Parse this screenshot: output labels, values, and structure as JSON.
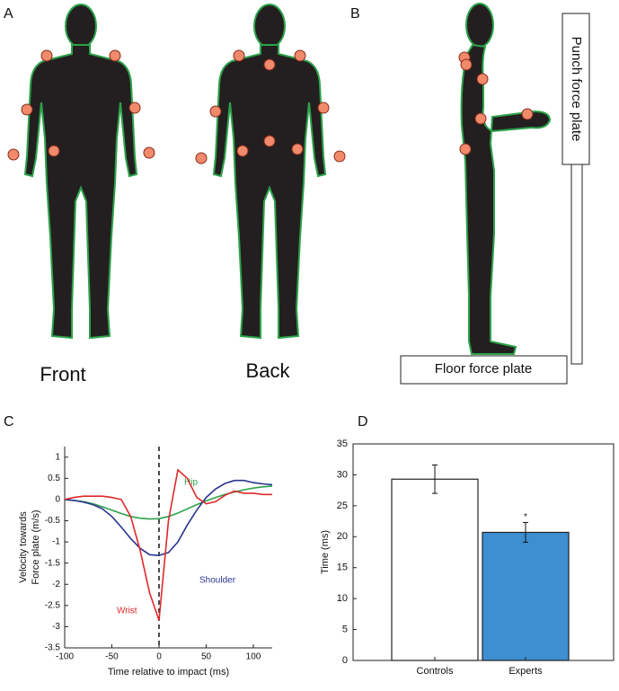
{
  "figure": {
    "panel_labels": [
      "A",
      "B",
      "C",
      "D"
    ],
    "body_views": [
      "Front",
      "Back"
    ],
    "plates": [
      "Punch force plate",
      "Floor force plate"
    ]
  },
  "chart_data": [
    {
      "type": "line",
      "xlabel": "Time relative to impact (ms)",
      "ylabel_lines": [
        "Velocity towards",
        "Force plate (m/s)"
      ],
      "x": [
        -100,
        -90,
        -80,
        -70,
        -60,
        -50,
        -40,
        -30,
        -20,
        -10,
        0,
        10,
        20,
        30,
        40,
        50,
        60,
        70,
        80,
        90,
        100,
        110,
        120
      ],
      "series": [
        {
          "name": "Hip",
          "color": "#2ca24a",
          "values": [
            0,
            -0.02,
            -0.05,
            -0.1,
            -0.17,
            -0.25,
            -0.33,
            -0.4,
            -0.44,
            -0.46,
            -0.45,
            -0.4,
            -0.32,
            -0.22,
            -0.12,
            -0.03,
            0.05,
            0.12,
            0.18,
            0.23,
            0.27,
            0.3,
            0.32
          ]
        },
        {
          "name": "Shoulder",
          "color": "#2a3590",
          "values": [
            0,
            -0.02,
            -0.06,
            -0.12,
            -0.22,
            -0.4,
            -0.65,
            -0.92,
            -1.15,
            -1.3,
            -1.32,
            -1.25,
            -1.0,
            -0.6,
            -0.25,
            0.05,
            0.25,
            0.38,
            0.45,
            0.45,
            0.4,
            0.37,
            0.35
          ]
        },
        {
          "name": "Wrist",
          "color": "#e0282a",
          "values": [
            0,
            0.05,
            0.08,
            0.08,
            0.08,
            0.05,
            0,
            -0.4,
            -1.2,
            -2.2,
            -2.85,
            -0.5,
            0.7,
            0.5,
            0.05,
            -0.1,
            -0.05,
            0.1,
            0.2,
            0.15,
            0.15,
            0.12,
            0.12
          ]
        }
      ],
      "xlim": [
        -100,
        120
      ],
      "xticks": [
        -100,
        -50,
        0,
        50,
        100
      ],
      "ylim": [
        -3.5,
        1.25
      ],
      "yticks": [
        1,
        0.5,
        0,
        -0.5,
        -1,
        -1.5,
        -2,
        -2.5,
        -3,
        -3.5
      ],
      "vline": 0
    },
    {
      "type": "bar",
      "ylabel": "Time (ms)",
      "categories": [
        "Controls",
        "Experts"
      ],
      "values": [
        29.3,
        20.7
      ],
      "errors": [
        2.3,
        1.6
      ],
      "colors": [
        "#ffffff",
        "#3d8fd1"
      ],
      "annotation": "*",
      "ylim": [
        0,
        35
      ],
      "yticks": [
        0,
        5,
        10,
        15,
        20,
        25,
        30,
        35
      ]
    }
  ]
}
